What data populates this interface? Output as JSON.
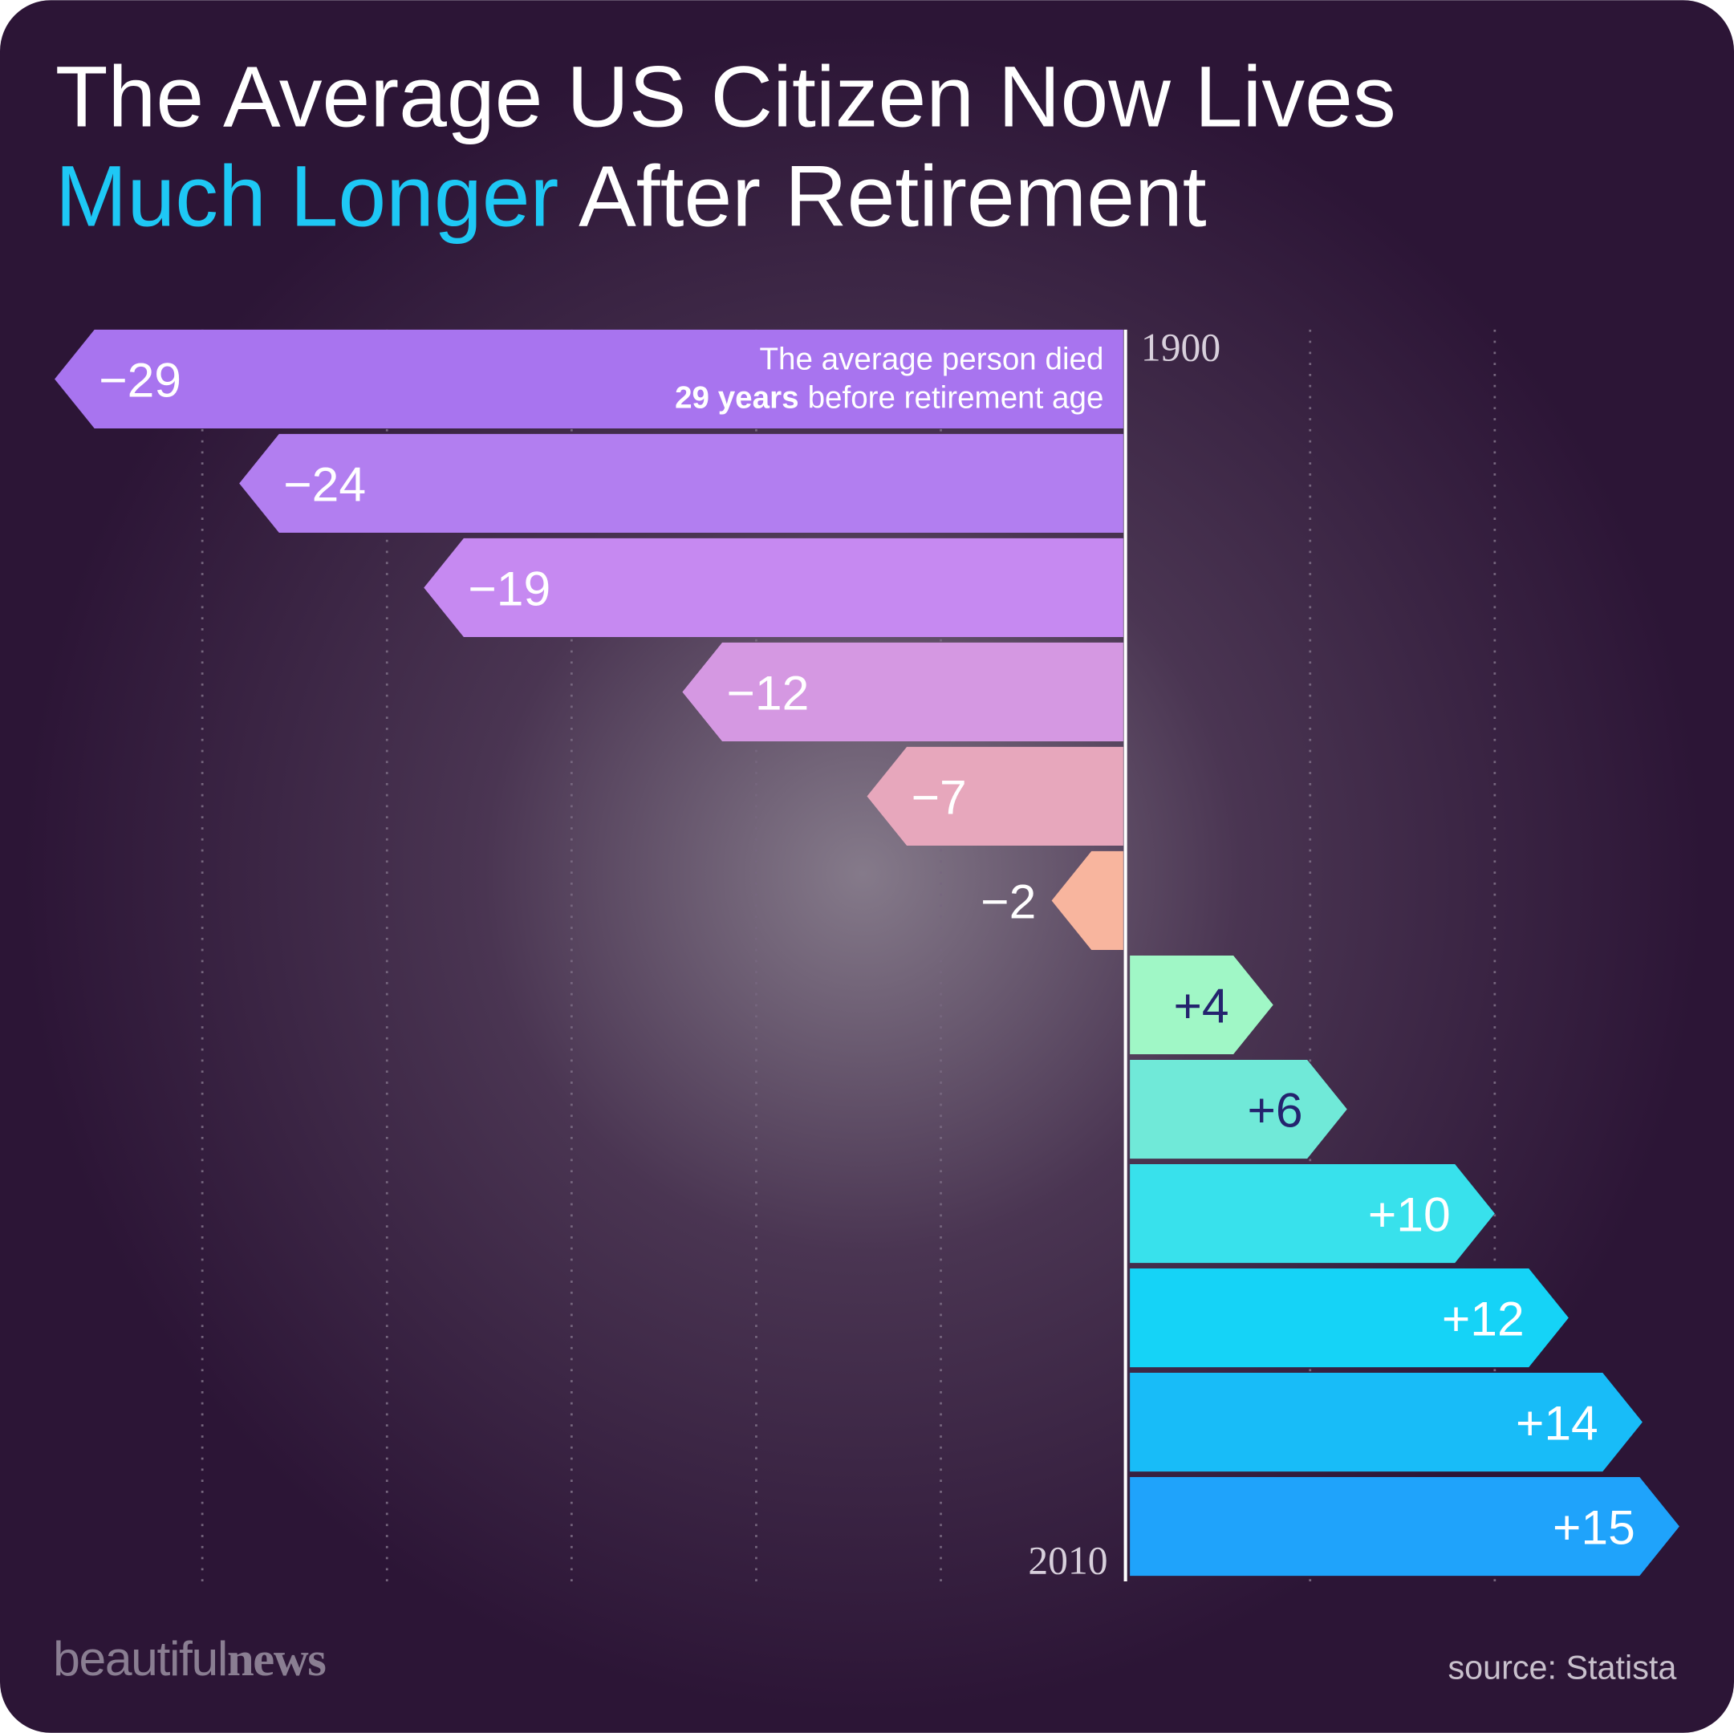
{
  "chart_data": {
    "type": "bar",
    "orientation": "horizontal",
    "title": {
      "line_1": "The Average US Citizen Now Lives",
      "line_2_highlight": "Much Longer",
      "line_2_rest": "After Retirement"
    },
    "annotation": {
      "line_1": "The average person died",
      "line_2_bold": "29 years",
      "line_2_rest": "before retirement age"
    },
    "categories": [
      "1900",
      null,
      null,
      null,
      null,
      null,
      null,
      null,
      null,
      null,
      null,
      "2010"
    ],
    "values": [
      -29,
      -24,
      -19,
      -12,
      -7,
      -2,
      4,
      6,
      10,
      12,
      14,
      15
    ],
    "value_labels": [
      "−29",
      "−24",
      "−19",
      "−12",
      "−7",
      "−2",
      "+4",
      "+6",
      "+10",
      "+12",
      "+14",
      "+15"
    ],
    "colors": [
      "#a874ef",
      "#b27ef0",
      "#c689f1",
      "#d598e2",
      "#e7a7bc",
      "#f8b59e",
      "#a0f7c6",
      "#70e9d8",
      "#38e1ec",
      "#15d3f7",
      "#18bcf8",
      "#1fa3fb"
    ],
    "label_colors": [
      "#ffffff",
      "#ffffff",
      "#ffffff",
      "#ffffff",
      "#ffffff",
      "#ffffff",
      "#24236e",
      "#24236e",
      "#ffffff",
      "#ffffff",
      "#ffffff",
      "#ffffff"
    ],
    "xlim": [
      -30,
      16
    ],
    "xticks": [
      -25,
      -20,
      -15,
      -10,
      -5,
      5,
      10
    ],
    "grid": true,
    "brand": {
      "light": "beautiful",
      "bold": "news"
    },
    "source": "source: Statista"
  }
}
